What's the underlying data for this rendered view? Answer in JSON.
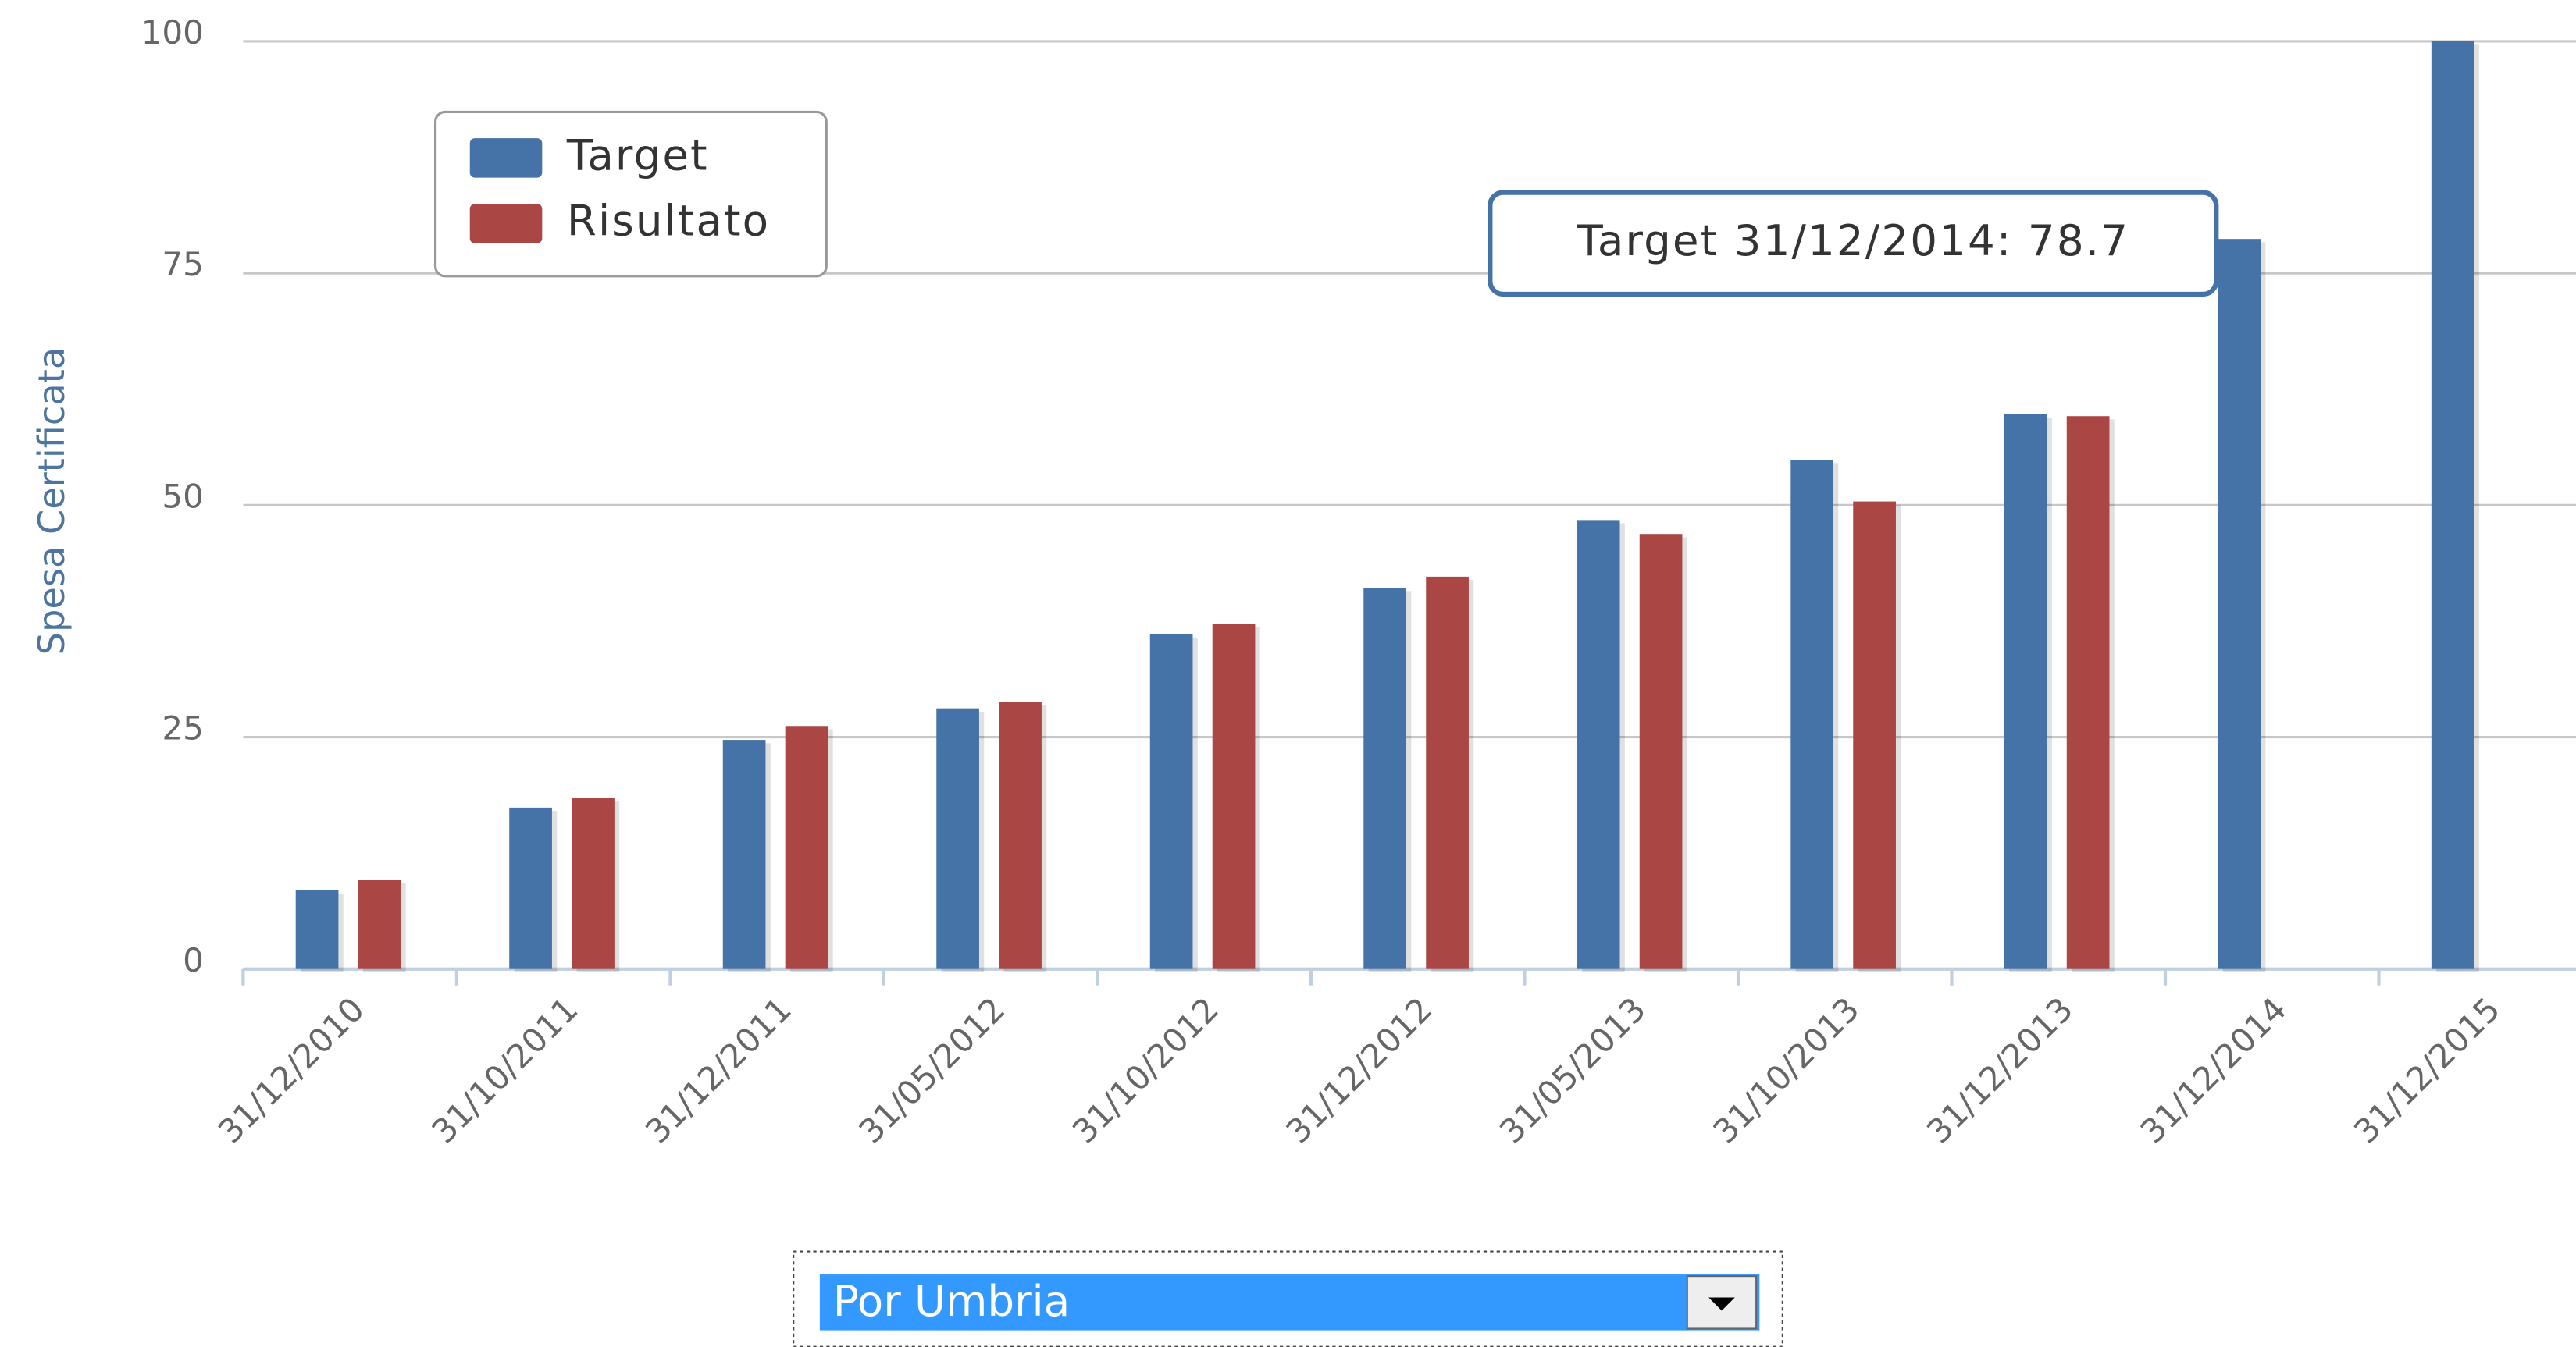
{
  "chart_data": {
    "type": "bar",
    "y_axis_label": "Spesa Certificata",
    "categories": [
      "31/12/2010",
      "31/10/2011",
      "31/12/2011",
      "31/05/2012",
      "31/10/2012",
      "31/12/2012",
      "31/05/2013",
      "31/10/2013",
      "31/12/2013",
      "31/12/2014",
      "31/12/2015"
    ],
    "series": [
      {
        "name": "Target",
        "color": "#4572a7",
        "values": [
          8.5,
          17.4,
          24.7,
          28.1,
          36.1,
          41.1,
          48.4,
          54.9,
          59.8,
          78.7,
          100
        ]
      },
      {
        "name": "Risultato",
        "color": "#aa4643",
        "values": [
          9.6,
          18.4,
          26.2,
          28.8,
          37.2,
          42.3,
          46.9,
          50.4,
          59.6,
          null,
          null
        ]
      }
    ],
    "ylim": [
      0,
      100
    ],
    "yticks": [
      0,
      25,
      50,
      75,
      100
    ],
    "grid": true,
    "legend": "top-left",
    "tooltip": "Target 31/12/2014: 78.7"
  },
  "select": {
    "value": "Por Umbria"
  }
}
